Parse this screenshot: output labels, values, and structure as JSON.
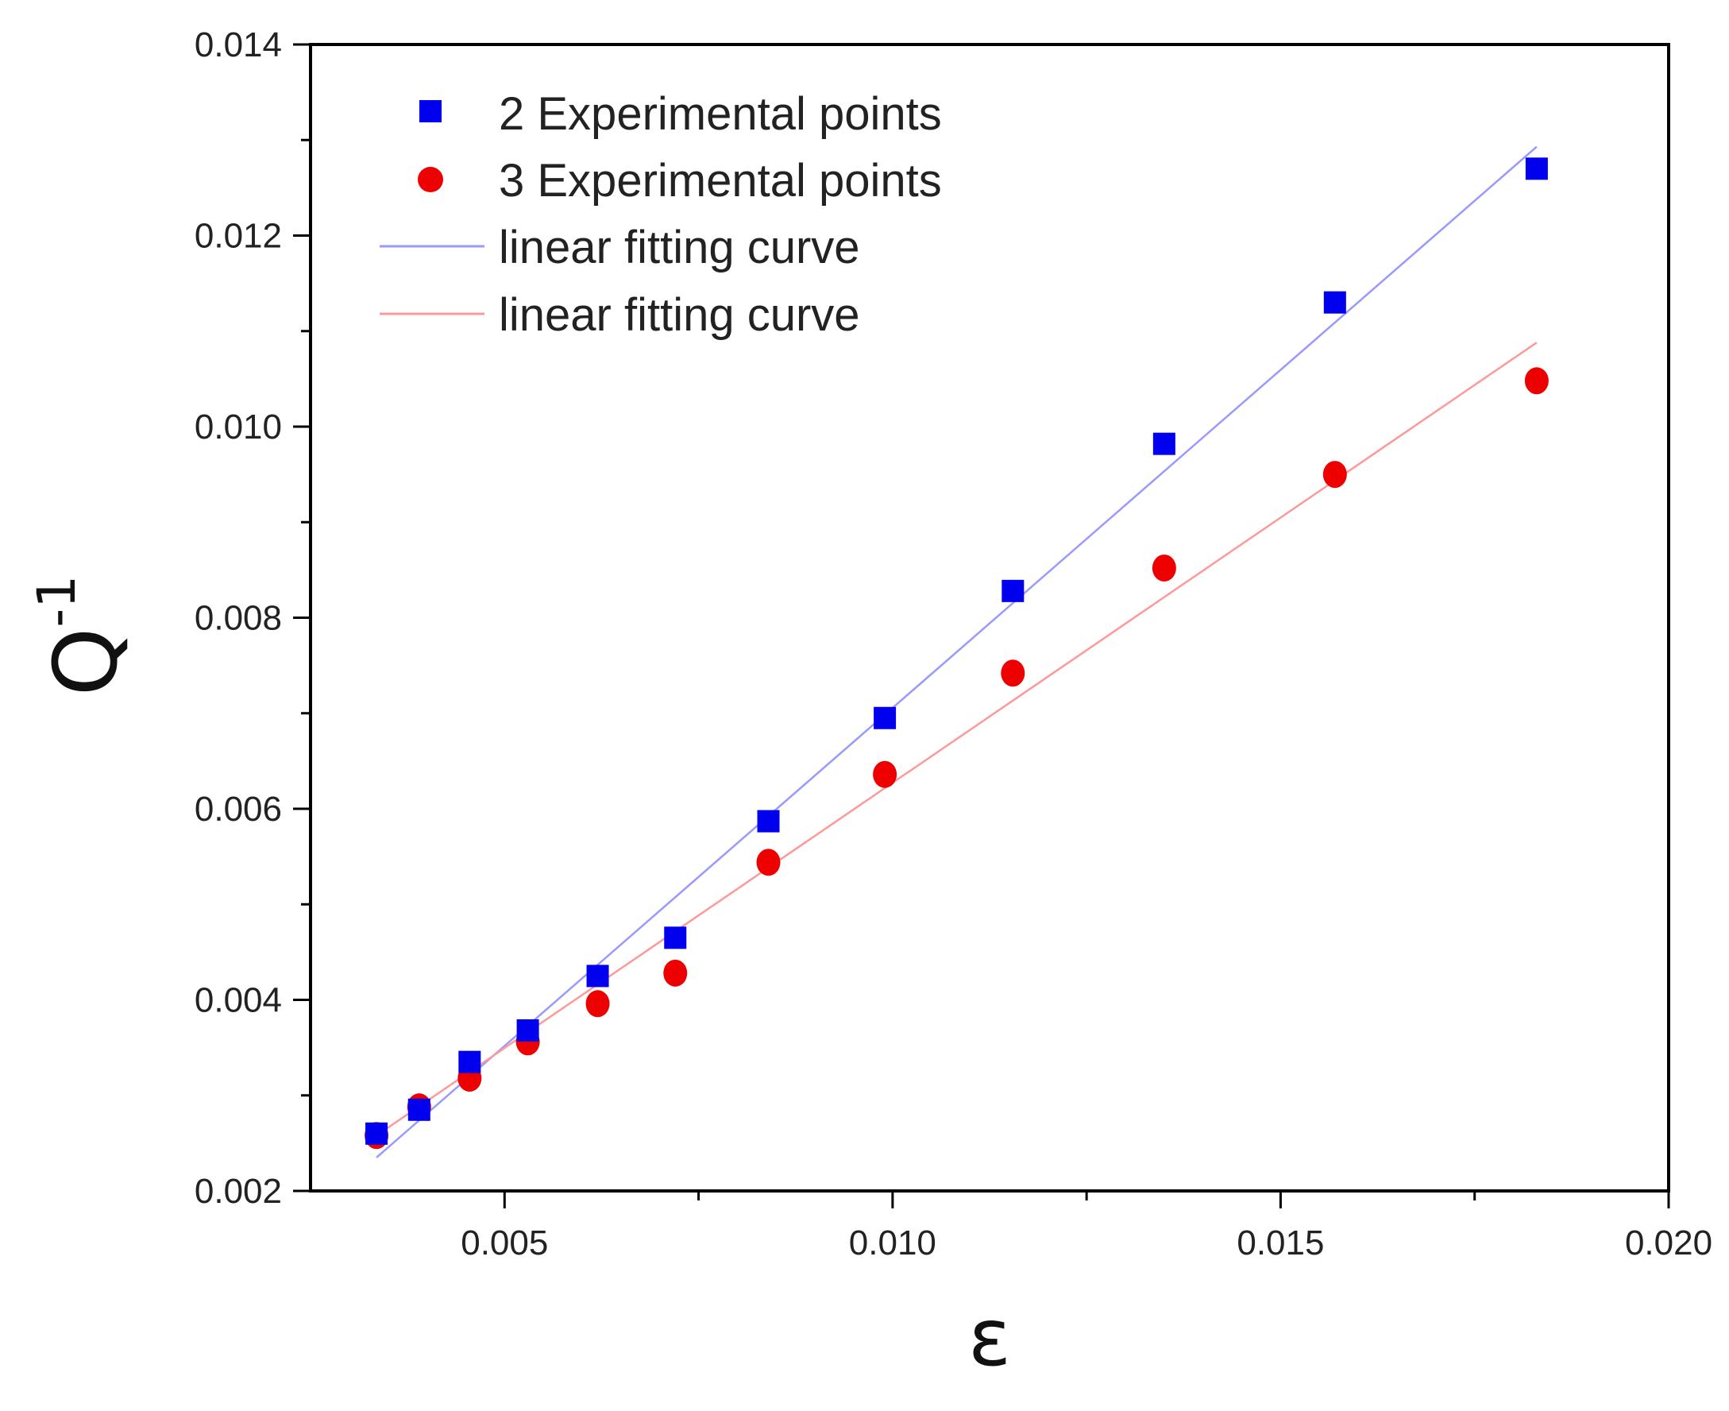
{
  "chart_data": {
    "type": "scatter",
    "title": "",
    "xlabel": "ε",
    "ylabel": {
      "base": "Q",
      "superscript": "-1"
    },
    "xlim": [
      0.0025,
      0.02
    ],
    "ylim": [
      0.002,
      0.014
    ],
    "x_major_ticks": [
      0.005,
      0.01,
      0.015,
      0.02
    ],
    "x_tick_labels": [
      "0.005",
      "0.010",
      "0.015",
      "0.020"
    ],
    "x_minor_ticks": [
      0.0075,
      0.0125,
      0.0175
    ],
    "y_major_ticks": [
      0.002,
      0.004,
      0.006,
      0.008,
      0.01,
      0.012,
      0.014
    ],
    "y_tick_labels": [
      "0.002",
      "0.004",
      "0.006",
      "0.008",
      "0.010",
      "0.012",
      "0.014"
    ],
    "y_minor_ticks": [
      0.003,
      0.005,
      0.007,
      0.009,
      0.011,
      0.013
    ],
    "grid": false,
    "legend_position": "top-left",
    "x": [
      0.00335,
      0.0039,
      0.00455,
      0.0053,
      0.0062,
      0.0072,
      0.0084,
      0.0099,
      0.01155,
      0.0135,
      0.0157,
      0.0183
    ],
    "series": [
      {
        "name": "2 Experimental points",
        "marker": "square",
        "color": "#0000ee",
        "values": [
          0.0026,
          0.00285,
          0.00335,
          0.00368,
          0.00425,
          0.00465,
          0.00587,
          0.00695,
          0.00828,
          0.00982,
          0.0113,
          0.0127
        ]
      },
      {
        "name": "3 Experimental points",
        "marker": "circle",
        "color": "#ee0000",
        "values": [
          0.00258,
          0.00288,
          0.00318,
          0.00356,
          0.00396,
          0.00428,
          0.00544,
          0.00636,
          0.00742,
          0.00852,
          0.0095,
          0.01048
        ]
      }
    ],
    "fits": [
      {
        "name": "linear fitting curve",
        "color": "#9999ff",
        "x": [
          0.00335,
          0.0183
        ],
        "y": [
          0.00235,
          0.01293
        ]
      },
      {
        "name": "linear fitting curve",
        "color": "#ff9999",
        "x": [
          0.00335,
          0.0183
        ],
        "y": [
          0.00258,
          0.01088
        ]
      }
    ]
  }
}
